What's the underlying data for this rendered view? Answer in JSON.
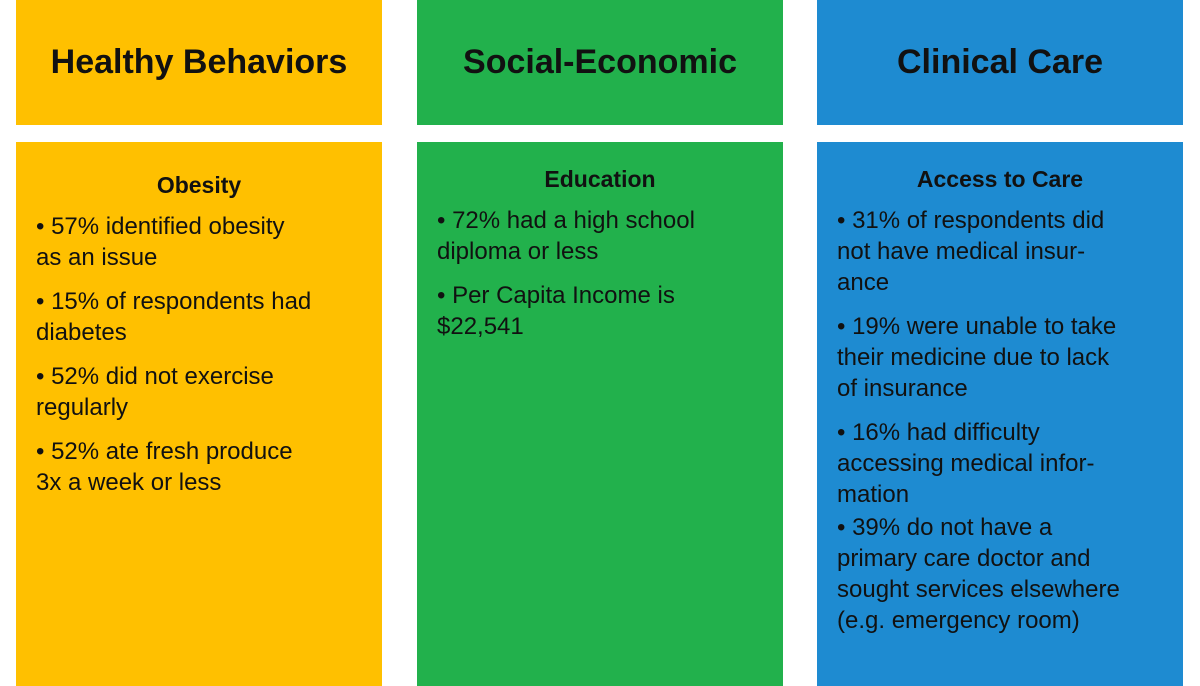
{
  "columns": [
    {
      "header": "Healthy Behaviors",
      "section_title": "Obesity",
      "items": [
        "• 57% identified obesity\nas an issue",
        "• 15% of respondents had\ndiabetes",
        "• 52% did not exercise\nregularly",
        "• 52% ate fresh produce\n3x a week or less"
      ],
      "color": "#ffc000"
    },
    {
      "header": "Social-Economic",
      "section_title": "Education",
      "items": [
        "• 72% had a high school\ndiploma or less",
        "• Per Capita Income is\n$22,541"
      ],
      "color": "#22b14c"
    },
    {
      "header": "Clinical Care",
      "section_title": "Access to Care",
      "items": [
        "• 31% of respondents did\nnot have medical insur-\nance",
        "• 19% were unable to take\ntheir medicine due to lack\nof insurance",
        "• 16% had difficulty\naccessing medical infor-\nmation",
        "• 39% do not have a\nprimary care doctor and\nsought services elsewhere\n(e.g. emergency room)"
      ],
      "color": "#1e8bd1"
    }
  ]
}
